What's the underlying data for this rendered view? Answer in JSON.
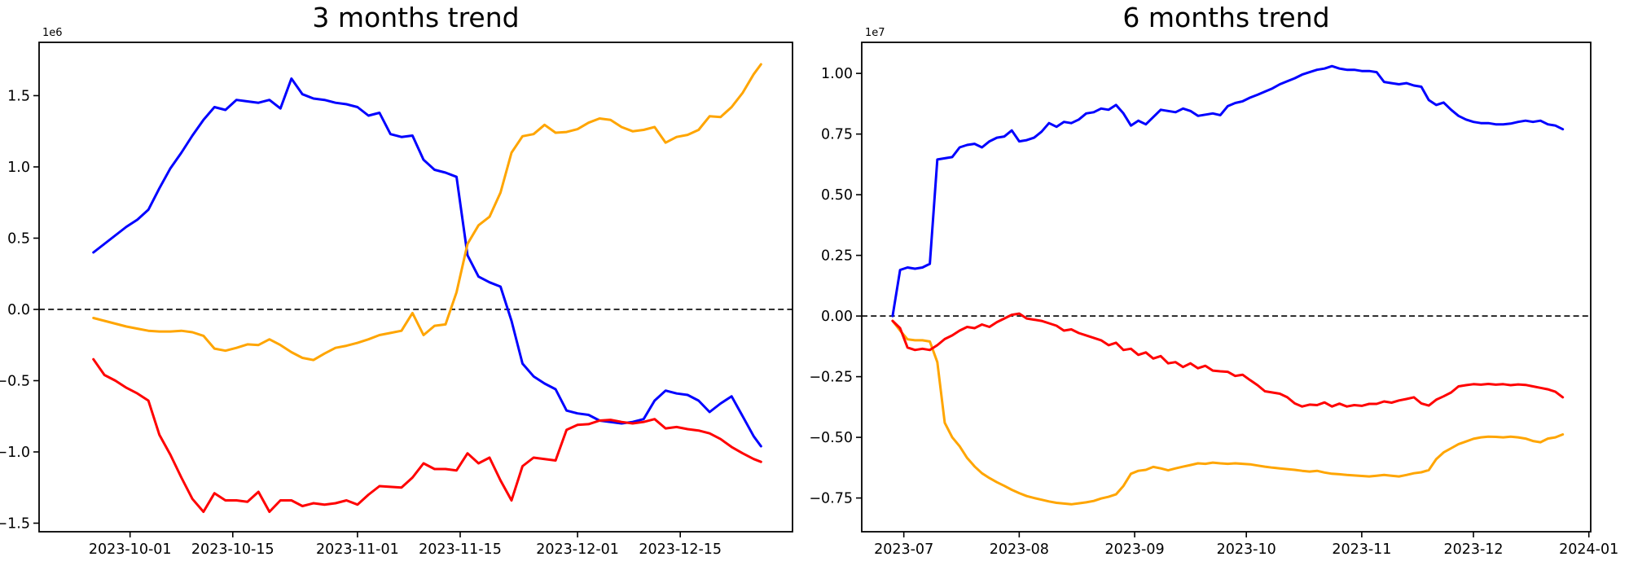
{
  "figure": {
    "background": "#ffffff"
  },
  "chart_data": [
    {
      "type": "line",
      "title": "3 months trend",
      "scale_label": "1e6",
      "value_unit_multiplier": 1000000,
      "x_start_date": "2023-09-26",
      "xlabel": "",
      "ylabel": "",
      "grid": false,
      "legend": "none",
      "zero_line": {
        "style": "dashed",
        "color": "#000000",
        "y": 0
      },
      "xlim": [
        -7.4,
        95.3
      ],
      "ylim": [
        -1.56,
        1.874
      ],
      "x_ticks": [
        {
          "label": "2023-10-01",
          "x": 5
        },
        {
          "label": "2023-10-15",
          "x": 19
        },
        {
          "label": "2023-11-01",
          "x": 36
        },
        {
          "label": "2023-11-15",
          "x": 50
        },
        {
          "label": "2023-12-01",
          "x": 66
        },
        {
          "label": "2023-12-15",
          "x": 80
        }
      ],
      "y_ticks": [
        {
          "label": "1.5",
          "v": 1.5
        },
        {
          "label": "1.0",
          "v": 1.0
        },
        {
          "label": "0.5",
          "v": 0.5
        },
        {
          "label": "0.0",
          "v": 0.0
        },
        {
          "label": "−0.5",
          "v": -0.5
        },
        {
          "label": "−1.0",
          "v": -1.0
        },
        {
          "label": "−1.5",
          "v": -1.5
        }
      ],
      "x": [
        0,
        1.5,
        3,
        4.5,
        6,
        7.5,
        9,
        10.5,
        12,
        13.5,
        15,
        16.5,
        18,
        19.5,
        21,
        22.5,
        24,
        25.5,
        27,
        28.5,
        30,
        31.5,
        33,
        34.5,
        36,
        37.5,
        39,
        40.5,
        42,
        43.5,
        45,
        46.5,
        48,
        49.5,
        51,
        52.5,
        54,
        55.5,
        57,
        58.5,
        60,
        61.5,
        63,
        64.5,
        66,
        67.5,
        69,
        70.5,
        72,
        73.5,
        75,
        76.5,
        78,
        79.5,
        81,
        82.5,
        84,
        85.5,
        87,
        88.5,
        90,
        91
      ],
      "series": [
        {
          "name": "series-blue",
          "color": "#0000ff",
          "values": [
            0.4,
            0.46,
            0.52,
            0.58,
            0.63,
            0.7,
            0.85,
            0.99,
            1.1,
            1.22,
            1.33,
            1.42,
            1.4,
            1.47,
            1.46,
            1.45,
            1.47,
            1.41,
            1.62,
            1.51,
            1.48,
            1.47,
            1.45,
            1.44,
            1.42,
            1.36,
            1.38,
            1.23,
            1.21,
            1.22,
            1.05,
            0.98,
            0.96,
            0.93,
            0.38,
            0.23,
            0.19,
            0.16,
            -0.08,
            -0.38,
            -0.47,
            -0.52,
            -0.56,
            -0.71,
            -0.73,
            -0.74,
            -0.78,
            -0.79,
            -0.8,
            -0.79,
            -0.77,
            -0.64,
            -0.57,
            -0.59,
            -0.6,
            -0.64,
            -0.72,
            -0.66,
            -0.61,
            -0.75,
            -0.89,
            -0.96
          ]
        },
        {
          "name": "series-orange",
          "color": "#ffa500",
          "values": [
            -0.06,
            -0.08,
            -0.1,
            -0.12,
            -0.135,
            -0.15,
            -0.155,
            -0.155,
            -0.15,
            -0.16,
            -0.185,
            -0.275,
            -0.29,
            -0.27,
            -0.245,
            -0.25,
            -0.21,
            -0.25,
            -0.3,
            -0.34,
            -0.355,
            -0.31,
            -0.27,
            -0.255,
            -0.235,
            -0.21,
            -0.18,
            -0.165,
            -0.15,
            -0.025,
            -0.18,
            -0.115,
            -0.105,
            0.12,
            0.46,
            0.59,
            0.65,
            0.82,
            1.1,
            1.215,
            1.23,
            1.295,
            1.24,
            1.245,
            1.265,
            1.31,
            1.34,
            1.33,
            1.28,
            1.25,
            1.26,
            1.28,
            1.17,
            1.21,
            1.225,
            1.26,
            1.355,
            1.35,
            1.42,
            1.52,
            1.65,
            1.72
          ]
        },
        {
          "name": "series-red",
          "color": "#ff0000",
          "values": [
            -0.35,
            -0.46,
            -0.5,
            -0.55,
            -0.59,
            -0.64,
            -0.88,
            -1.02,
            -1.18,
            -1.33,
            -1.42,
            -1.29,
            -1.34,
            -1.34,
            -1.35,
            -1.28,
            -1.42,
            -1.34,
            -1.34,
            -1.38,
            -1.36,
            -1.37,
            -1.36,
            -1.34,
            -1.37,
            -1.3,
            -1.24,
            -1.245,
            -1.25,
            -1.18,
            -1.08,
            -1.12,
            -1.12,
            -1.13,
            -1.01,
            -1.08,
            -1.04,
            -1.2,
            -1.34,
            -1.1,
            -1.04,
            -1.05,
            -1.06,
            -0.845,
            -0.81,
            -0.805,
            -0.78,
            -0.775,
            -0.79,
            -0.8,
            -0.79,
            -0.77,
            -0.835,
            -0.825,
            -0.84,
            -0.85,
            -0.87,
            -0.91,
            -0.965,
            -1.01,
            -1.05,
            -1.07
          ]
        }
      ]
    },
    {
      "type": "line",
      "title": "6 months trend",
      "scale_label": "1e7",
      "value_unit_multiplier": 10000000,
      "x_start_date": "2023-06-28",
      "xlabel": "",
      "ylabel": "",
      "grid": false,
      "legend": "none",
      "zero_line": {
        "style": "dashed",
        "color": "#000000",
        "y": 0
      },
      "xlim": [
        -8.3,
        187.5
      ],
      "ylim": [
        -0.889,
        1.128
      ],
      "x_ticks": [
        {
          "label": "2023-07",
          "x": 3
        },
        {
          "label": "2023-08",
          "x": 34
        },
        {
          "label": "2023-09",
          "x": 65
        },
        {
          "label": "2023-10",
          "x": 95
        },
        {
          "label": "2023-11",
          "x": 126
        },
        {
          "label": "2023-12",
          "x": 156
        },
        {
          "label": "2024-01",
          "x": 187
        }
      ],
      "y_ticks": [
        {
          "label": "1.00",
          "v": 1.0
        },
        {
          "label": "0.75",
          "v": 0.75
        },
        {
          "label": "0.50",
          "v": 0.5
        },
        {
          "label": "0.25",
          "v": 0.25
        },
        {
          "label": "0.00",
          "v": 0.0
        },
        {
          "label": "−0.25",
          "v": -0.25
        },
        {
          "label": "−0.50",
          "v": -0.5
        },
        {
          "label": "−0.75",
          "v": -0.75
        }
      ],
      "x": [
        0,
        2,
        4,
        6,
        8,
        10,
        12,
        14,
        16,
        18,
        20,
        22,
        24,
        26,
        28,
        30,
        32,
        34,
        36,
        38,
        40,
        42,
        44,
        46,
        48,
        50,
        52,
        54,
        56,
        58,
        60,
        62,
        64,
        66,
        68,
        70,
        72,
        74,
        76,
        78,
        80,
        82,
        84,
        86,
        88,
        90,
        92,
        94,
        96,
        98,
        100,
        102,
        104,
        106,
        108,
        110,
        112,
        114,
        116,
        118,
        120,
        122,
        124,
        126,
        128,
        130,
        132,
        134,
        136,
        138,
        140,
        142,
        144,
        146,
        148,
        150,
        152,
        154,
        156,
        158,
        160,
        162,
        164,
        166,
        168,
        170,
        172,
        174,
        176,
        178,
        180
      ],
      "series": [
        {
          "name": "series-blue",
          "color": "#0000ff",
          "values": [
            0.0,
            0.19,
            0.2,
            0.195,
            0.2,
            0.215,
            0.645,
            0.65,
            0.655,
            0.695,
            0.705,
            0.71,
            0.695,
            0.72,
            0.735,
            0.74,
            0.765,
            0.72,
            0.725,
            0.735,
            0.76,
            0.795,
            0.78,
            0.8,
            0.795,
            0.81,
            0.835,
            0.84,
            0.855,
            0.85,
            0.87,
            0.835,
            0.785,
            0.805,
            0.79,
            0.82,
            0.85,
            0.845,
            0.84,
            0.855,
            0.845,
            0.825,
            0.83,
            0.835,
            0.828,
            0.865,
            0.878,
            0.885,
            0.9,
            0.912,
            0.925,
            0.938,
            0.955,
            0.968,
            0.98,
            0.995,
            1.005,
            1.015,
            1.02,
            1.03,
            1.02,
            1.015,
            1.015,
            1.01,
            1.01,
            1.005,
            0.965,
            0.96,
            0.955,
            0.96,
            0.95,
            0.945,
            0.89,
            0.87,
            0.88,
            0.85,
            0.825,
            0.81,
            0.8,
            0.795,
            0.795,
            0.79,
            0.79,
            0.793,
            0.8,
            0.805,
            0.8,
            0.805,
            0.79,
            0.785,
            0.77
          ]
        },
        {
          "name": "series-orange",
          "color": "#ffa500",
          "values": [
            -0.02,
            -0.06,
            -0.096,
            -0.1,
            -0.1,
            -0.105,
            -0.19,
            -0.44,
            -0.5,
            -0.537,
            -0.585,
            -0.62,
            -0.648,
            -0.668,
            -0.685,
            -0.7,
            -0.716,
            -0.73,
            -0.742,
            -0.75,
            -0.757,
            -0.764,
            -0.77,
            -0.773,
            -0.776,
            -0.772,
            -0.768,
            -0.762,
            -0.752,
            -0.745,
            -0.735,
            -0.7,
            -0.65,
            -0.638,
            -0.634,
            -0.622,
            -0.628,
            -0.636,
            -0.628,
            -0.621,
            -0.614,
            -0.607,
            -0.609,
            -0.604,
            -0.607,
            -0.609,
            -0.607,
            -0.609,
            -0.611,
            -0.616,
            -0.621,
            -0.625,
            -0.628,
            -0.631,
            -0.634,
            -0.638,
            -0.641,
            -0.638,
            -0.645,
            -0.65,
            -0.652,
            -0.655,
            -0.657,
            -0.659,
            -0.661,
            -0.658,
            -0.655,
            -0.658,
            -0.661,
            -0.655,
            -0.648,
            -0.644,
            -0.635,
            -0.59,
            -0.562,
            -0.545,
            -0.528,
            -0.517,
            -0.506,
            -0.5,
            -0.497,
            -0.498,
            -0.5,
            -0.497,
            -0.5,
            -0.505,
            -0.515,
            -0.52,
            -0.505,
            -0.5,
            -0.488
          ]
        },
        {
          "name": "series-red",
          "color": "#ff0000",
          "values": [
            -0.02,
            -0.05,
            -0.13,
            -0.14,
            -0.135,
            -0.14,
            -0.12,
            -0.095,
            -0.08,
            -0.06,
            -0.045,
            -0.05,
            -0.035,
            -0.045,
            -0.025,
            -0.01,
            0.005,
            0.01,
            -0.01,
            -0.015,
            -0.02,
            -0.03,
            -0.04,
            -0.06,
            -0.055,
            -0.07,
            -0.08,
            -0.09,
            -0.1,
            -0.12,
            -0.11,
            -0.14,
            -0.135,
            -0.16,
            -0.15,
            -0.175,
            -0.165,
            -0.195,
            -0.19,
            -0.21,
            -0.195,
            -0.215,
            -0.205,
            -0.225,
            -0.228,
            -0.23,
            -0.247,
            -0.242,
            -0.264,
            -0.285,
            -0.31,
            -0.315,
            -0.32,
            -0.335,
            -0.36,
            -0.373,
            -0.365,
            -0.367,
            -0.356,
            -0.373,
            -0.361,
            -0.373,
            -0.367,
            -0.37,
            -0.362,
            -0.362,
            -0.352,
            -0.357,
            -0.348,
            -0.342,
            -0.335,
            -0.36,
            -0.369,
            -0.345,
            -0.331,
            -0.315,
            -0.29,
            -0.285,
            -0.281,
            -0.283,
            -0.28,
            -0.283,
            -0.281,
            -0.285,
            -0.282,
            -0.284,
            -0.29,
            -0.296,
            -0.302,
            -0.312,
            -0.335
          ]
        }
      ]
    }
  ]
}
